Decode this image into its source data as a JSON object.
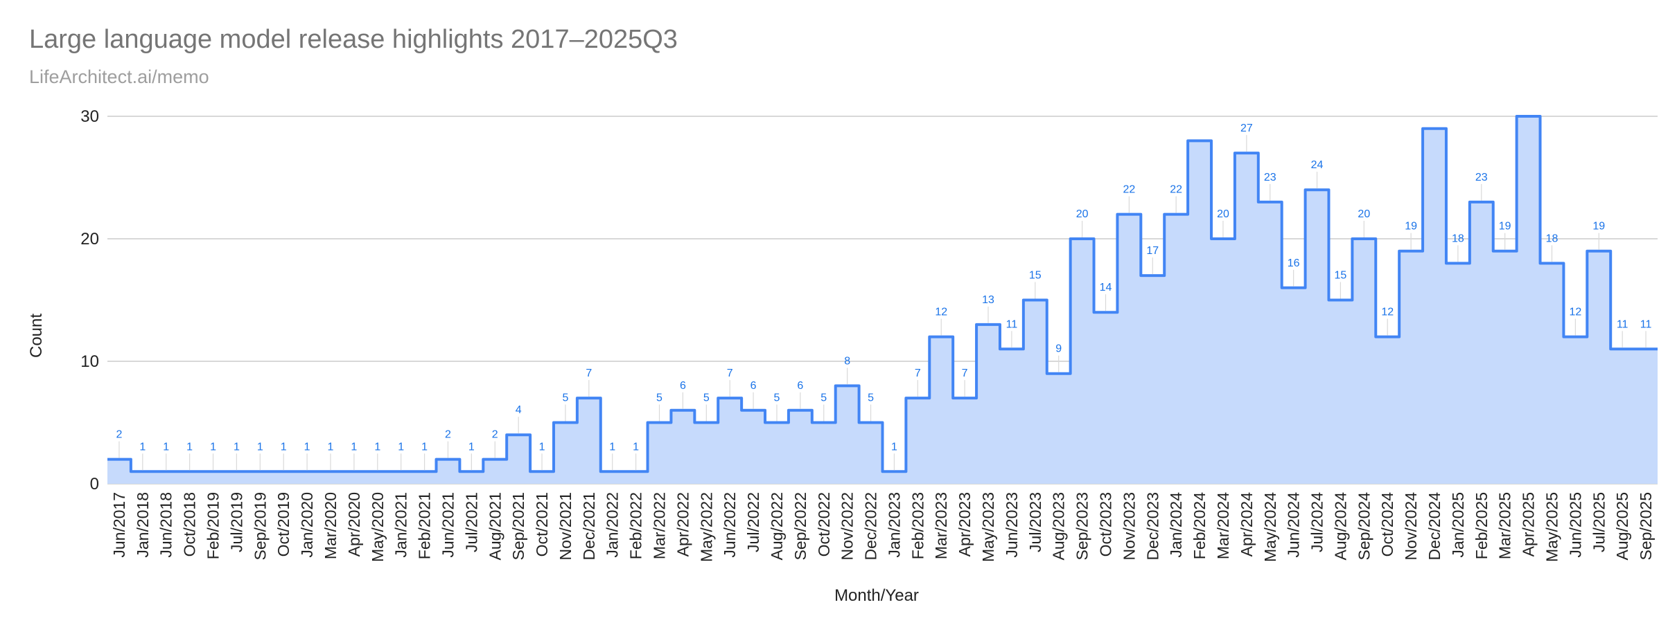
{
  "title": "Large language model release highlights 2017–2025Q3",
  "subtitle": "LifeArchitect.ai/memo",
  "colors": {
    "line": "#4285f4",
    "fill": "#c6dafc",
    "label": "#1a73e8",
    "grid": "#cccccc",
    "title": "#757575",
    "subtitle": "#9e9e9e"
  },
  "chart_data": {
    "type": "area",
    "style": "stepped",
    "xlabel": "Month/Year",
    "ylabel": "Count",
    "ylim": [
      0,
      30
    ],
    "yticks": [
      0,
      10,
      20,
      30
    ],
    "grid": true,
    "data_labels": true,
    "categories": [
      "Jun/2017",
      "Jan/2018",
      "Jun/2018",
      "Oct/2018",
      "Feb/2019",
      "Jul/2019",
      "Sep/2019",
      "Oct/2019",
      "Jan/2020",
      "Mar/2020",
      "Apr/2020",
      "May/2020",
      "Jan/2021",
      "Feb/2021",
      "Jun/2021",
      "Jul/2021",
      "Aug/2021",
      "Sep/2021",
      "Oct/2021",
      "Nov/2021",
      "Dec/2021",
      "Jan/2022",
      "Feb/2022",
      "Mar/2022",
      "Apr/2022",
      "May/2022",
      "Jun/2022",
      "Jul/2022",
      "Aug/2022",
      "Sep/2022",
      "Oct/2022",
      "Nov/2022",
      "Dec/2022",
      "Jan/2023",
      "Feb/2023",
      "Mar/2023",
      "Apr/2023",
      "May/2023",
      "Jun/2023",
      "Jul/2023",
      "Aug/2023",
      "Sep/2023",
      "Oct/2023",
      "Nov/2023",
      "Dec/2023",
      "Jan/2024",
      "Feb/2024",
      "Mar/2024",
      "Apr/2024",
      "May/2024",
      "Jun/2024",
      "Jul/2024",
      "Aug/2024",
      "Sep/2024",
      "Oct/2024",
      "Nov/2024",
      "Dec/2024",
      "Jan/2025",
      "Feb/2025",
      "Mar/2025",
      "Apr/2025",
      "May/2025",
      "Jun/2025",
      "Jul/2025",
      "Aug/2025",
      "Sep/2025"
    ],
    "values": [
      2,
      1,
      1,
      1,
      1,
      1,
      1,
      1,
      1,
      1,
      1,
      1,
      1,
      1,
      2,
      1,
      2,
      4,
      1,
      5,
      7,
      1,
      1,
      5,
      6,
      5,
      7,
      6,
      5,
      6,
      5,
      8,
      5,
      1,
      7,
      12,
      7,
      13,
      11,
      15,
      9,
      20,
      14,
      22,
      17,
      22,
      28,
      20,
      27,
      23,
      16,
      24,
      15,
      20,
      12,
      19,
      29,
      18,
      23,
      19,
      30,
      18,
      12,
      19,
      11,
      11
    ],
    "point_labels": [
      "2",
      "1",
      "1",
      "1",
      "1",
      "1",
      "1",
      "1",
      "1",
      "1",
      "1",
      "1",
      "1",
      "1",
      "2",
      "1",
      "2",
      "4",
      "1",
      "5",
      "7",
      "1",
      "1",
      "5",
      "6",
      "5",
      "7",
      "6",
      "5",
      "6",
      "5",
      "8",
      "5",
      "1",
      "7",
      "12",
      "7",
      "13",
      "11",
      "15",
      "9",
      "20",
      "14",
      "22",
      "17",
      "22",
      "",
      "20",
      "27",
      "23",
      "16",
      "24",
      "15",
      "20",
      "12",
      "19",
      "",
      "18",
      "23",
      "19",
      "",
      "18",
      "12",
      "19",
      "11",
      "11"
    ]
  }
}
